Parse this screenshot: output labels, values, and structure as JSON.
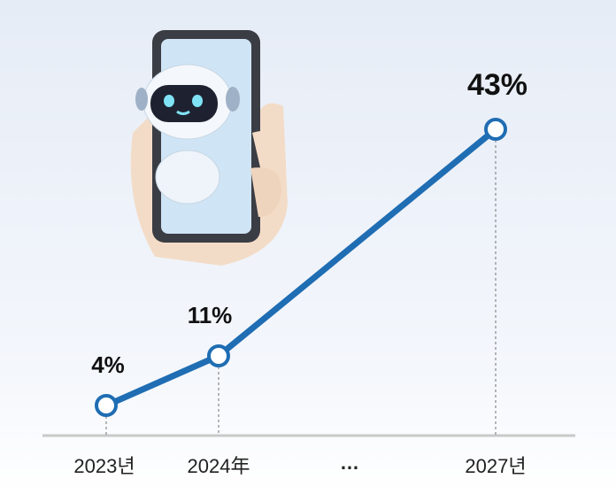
{
  "chart_data": {
    "type": "line",
    "categories": [
      "2023년",
      "2024年",
      "2027년"
    ],
    "values": [
      4,
      11,
      43
    ],
    "value_labels": [
      "4%",
      "11%",
      "43%"
    ],
    "ellipsis": "…",
    "color": "#1f6db3",
    "ylim": [
      0,
      45
    ]
  }
}
